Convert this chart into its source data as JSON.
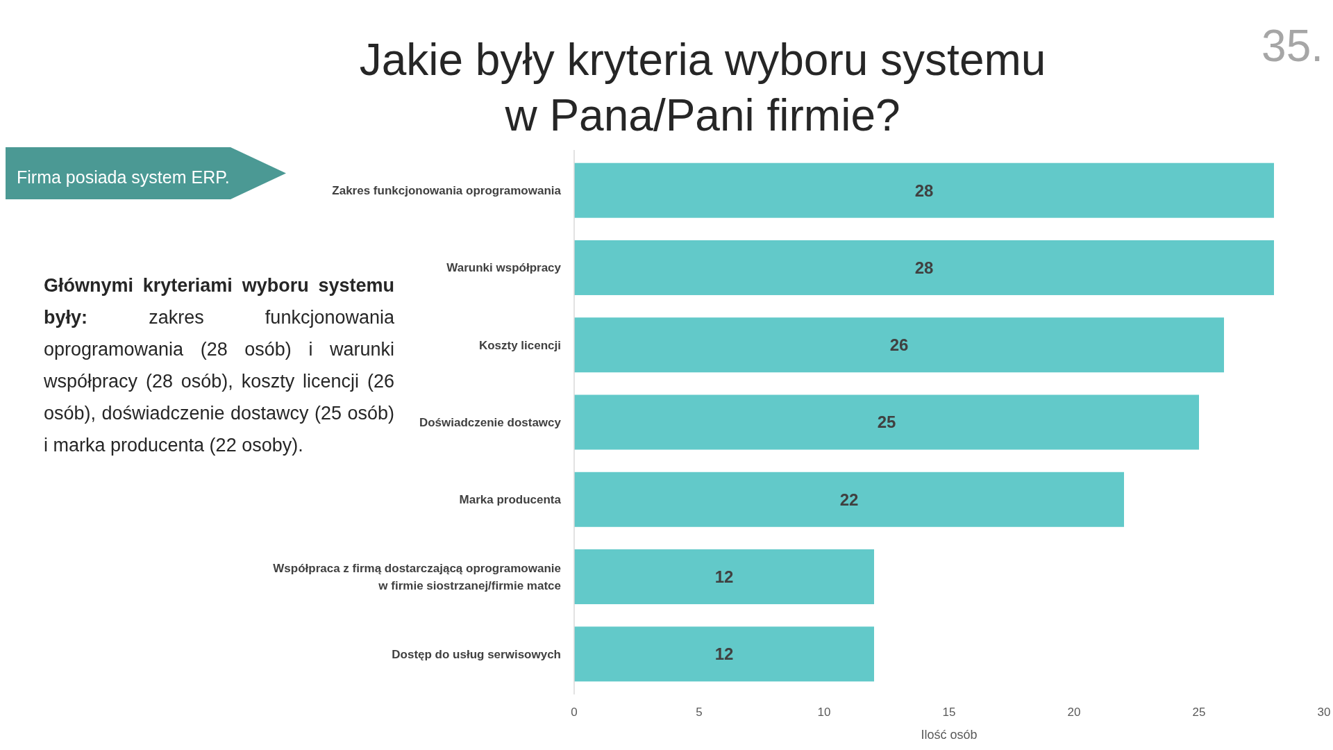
{
  "chart_data": {
    "type": "bar",
    "orientation": "horizontal",
    "title": "Jakie były kryteria wyboru systemu\nw Pana/Pani firmie?",
    "xlabel": "Ilość osób",
    "categories": [
      "Zakres funkcjonowania oprogramowania",
      "Warunki współpracy",
      "Koszty licencji",
      "Doświadczenie dostawcy",
      "Marka producenta",
      "Współpraca z firmą dostarczającą oprogramowanie w firmie siostrzanej/firmie matce",
      "Dostęp do usług serwisowych"
    ],
    "values": [
      28,
      28,
      26,
      25,
      22,
      12,
      12
    ],
    "color": "#62c9c9",
    "data_labels": true,
    "xlim": [
      0,
      30
    ],
    "xticks": [
      0,
      5,
      10,
      15,
      20,
      25,
      30
    ],
    "grid": false,
    "annotations": [
      "35.",
      "Firma posiada system ERP.",
      "Głównymi kryteriami wyboru systemu były:",
      " zakres funkcjonowania oprogramowania (28 osób) i warunki współpracy (28 osób), koszty licencji (26 osób), doświadczenie dostawcy (25 osób) i marka producenta (22 osoby)."
    ]
  }
}
